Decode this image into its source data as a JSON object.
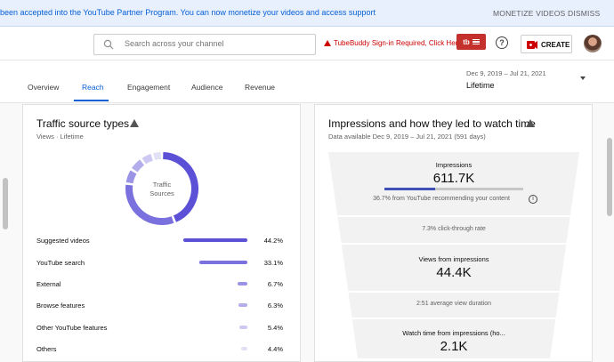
{
  "banner": {
    "text": "been accepted into the YouTube Partner Program. You can now monetize your videos and access support",
    "monetize": "MONETIZE VIDEOS",
    "dismiss": "DISMISS"
  },
  "header": {
    "search_placeholder": "Search across your channel",
    "tubebuddy_notice": "TubeBuddy Sign-in Required, Click Here",
    "tubebuddy_badge": "tb",
    "help": "?",
    "create_label": "CREATE"
  },
  "tabs": [
    {
      "label": "Overview"
    },
    {
      "label": "Reach"
    },
    {
      "label": "Engagement"
    },
    {
      "label": "Audience"
    },
    {
      "label": "Revenue"
    }
  ],
  "date": {
    "range": "Dec 9, 2019 – Jul 21, 2021",
    "label": "Lifetime"
  },
  "traffic": {
    "title": "Traffic source types",
    "subtitle": "Views · Lifetime",
    "center_line1": "Traffic",
    "center_line2": "Sources",
    "rows": [
      {
        "label": "Suggested videos",
        "pct": "44.2%",
        "value": 44.2
      },
      {
        "label": "YouTube search",
        "pct": "33.1%",
        "value": 33.1
      },
      {
        "label": "External",
        "pct": "6.7%",
        "value": 6.7
      },
      {
        "label": "Browse features",
        "pct": "6.3%",
        "value": 6.3
      },
      {
        "label": "Other YouTube features",
        "pct": "5.4%",
        "value": 5.4
      },
      {
        "label": "Others",
        "pct": "4.4%",
        "value": 4.4
      }
    ]
  },
  "impressions": {
    "title": "Impressions and how they led to watch time",
    "subtitle": "Data available Dec 9, 2019 – Jul 21, 2021 (591 days)",
    "impressions_label": "Impressions",
    "impressions_value": "611.7K",
    "recommend_note": "36.7% from YouTube recommending your content",
    "recommend_fraction": 0.367,
    "ctr": "7.3% click-through rate",
    "views_label": "Views from impressions",
    "views_value": "44.4K",
    "avg_duration": "2:51 average view duration",
    "watch_label": "Watch time from impressions (ho...",
    "watch_value": "2.1K"
  },
  "colors": {
    "accent": "#065fd4",
    "series": [
      "#5b50d6",
      "#7a70de",
      "#9b93e6",
      "#b3adec",
      "#cdc9f2",
      "#e2e0f7"
    ]
  }
}
